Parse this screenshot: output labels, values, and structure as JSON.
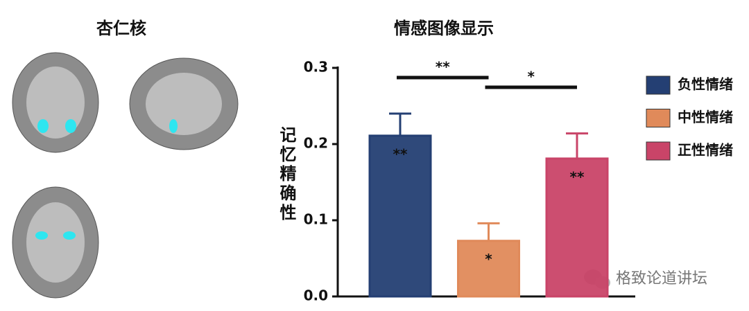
{
  "panel_title": "杏仁核",
  "watermark": "格致论道讲坛",
  "chart_data": {
    "type": "bar",
    "title": "情感图像显示",
    "y_label": "记忆精确性",
    "categories": [
      "负性情绪",
      "中性情绪",
      "正性情绪"
    ],
    "values": [
      0.211,
      0.073,
      0.181
    ],
    "errors": [
      0.029,
      0.023,
      0.033
    ],
    "colors": [
      "#243f73",
      "#e08a5a",
      "#c94468"
    ],
    "annotations": [
      "**",
      "*",
      "**"
    ],
    "comparisons": [
      {
        "from": 0,
        "to": 1,
        "label": "**"
      },
      {
        "from": 1,
        "to": 2,
        "label": "*"
      }
    ],
    "ylim": [
      0,
      0.3
    ],
    "yticks": [
      {
        "value": 0,
        "label": "0.0"
      },
      0.1,
      0.2,
      0.3
    ],
    "legend": "right"
  }
}
